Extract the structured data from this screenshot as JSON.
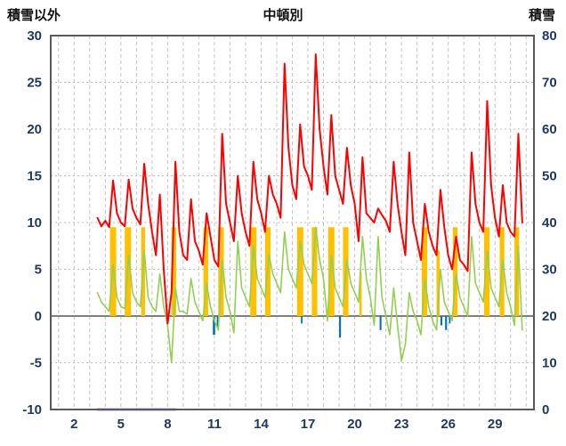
{
  "header": {
    "left_axis_caption": "積雪以外",
    "title": "中頓別",
    "right_axis_caption": "積雪"
  },
  "chart_data": {
    "type": "line",
    "title": "中頓別",
    "grid": true,
    "legend_position": "none",
    "left_axis": {
      "label": "積雪以外",
      "min": -10,
      "max": 30,
      "ticks": [
        30,
        25,
        20,
        15,
        10,
        5,
        0,
        -5,
        -10
      ]
    },
    "right_axis": {
      "label": "積雪",
      "min": 0,
      "max": 80,
      "ticks": [
        80,
        70,
        60,
        50,
        40,
        30,
        20,
        10,
        0
      ]
    },
    "x_axis": {
      "min": 0.5,
      "max": 31.5,
      "ticks": [
        2,
        5,
        8,
        11,
        14,
        17,
        20,
        23,
        26,
        29
      ],
      "gridline_step": 1
    },
    "series": [
      {
        "name": "orange-bars",
        "type": "bar",
        "color": "#FFC000",
        "axis": "left",
        "segments": [
          [
            4.3,
            4.7,
            9.5
          ],
          [
            5.25,
            5.65,
            9.5
          ],
          [
            6.3,
            6.55,
            9.5
          ],
          [
            8.25,
            8.55,
            9.5
          ],
          [
            10.3,
            10.6,
            9.5
          ],
          [
            11.25,
            11.6,
            9.5
          ],
          [
            13.3,
            13.7,
            9.5
          ],
          [
            14.25,
            14.6,
            9.5
          ],
          [
            16.3,
            16.7,
            9.5
          ],
          [
            17.25,
            17.6,
            9.5
          ],
          [
            18.3,
            18.7,
            9.5
          ],
          [
            19.25,
            19.6,
            9.5
          ],
          [
            20.3,
            20.45,
            4.7
          ],
          [
            24.3,
            24.65,
            9.5
          ],
          [
            25.25,
            25.45,
            7
          ],
          [
            26.3,
            26.6,
            9.5
          ],
          [
            28.3,
            28.65,
            9.5
          ],
          [
            29.3,
            29.6,
            9.5
          ],
          [
            30.25,
            30.55,
            9.5
          ]
        ]
      },
      {
        "name": "blue-bars",
        "type": "bar",
        "color": "#0070C0",
        "axis": "left",
        "segments": [
          [
            10.9,
            11.05,
            -2
          ],
          [
            11.15,
            11.25,
            -1.2
          ],
          [
            16.55,
            16.65,
            -0.8
          ],
          [
            19,
            19.12,
            -2.3
          ],
          [
            21.6,
            21.72,
            -1.5
          ],
          [
            25.5,
            25.62,
            -1
          ],
          [
            25.8,
            25.92,
            -1.5
          ],
          [
            26.05,
            26.15,
            -0.8
          ]
        ]
      },
      {
        "name": "purple-line",
        "type": "line-points",
        "color": "#7030A0",
        "width": 2.5,
        "axis": "right",
        "points": [
          [
            3.5,
            0
          ],
          [
            8.5,
            0
          ]
        ]
      },
      {
        "name": "green-line",
        "type": "line-sampled",
        "color": "#92D050",
        "width": 1.6,
        "axis": "left",
        "x_start": 3.5,
        "x_step": 0.25,
        "values": [
          2.5,
          1.5,
          1,
          0.5,
          5.5,
          2,
          1,
          0.8,
          6.5,
          2.5,
          1.5,
          1,
          7,
          2,
          1,
          0.5,
          4.5,
          1,
          -1,
          -5,
          3,
          0.5,
          0.5,
          0.2,
          4,
          1.5,
          0.5,
          -0.5,
          3.5,
          1,
          -0.5,
          -1.5,
          6,
          2,
          0.5,
          -1.8,
          8,
          3,
          2,
          1,
          7.5,
          4,
          3,
          2,
          6.5,
          4.5,
          3.5,
          2.5,
          9,
          5,
          4,
          3,
          8,
          5.5,
          4.5,
          3.5,
          9.5,
          6,
          4,
          -0.5,
          6.5,
          3,
          2,
          1,
          6,
          3.5,
          2.5,
          1.5,
          8.5,
          4,
          2,
          -1,
          8.5,
          2,
          0,
          -2,
          3,
          -1,
          -4.8,
          -3,
          2.5,
          0.5,
          -0.5,
          -2,
          4,
          1,
          -0.5,
          -1.5,
          5,
          1.5,
          0.5,
          -0.5,
          4.5,
          2,
          1,
          0,
          8.5,
          3.5,
          2.5,
          1.5,
          7,
          3,
          2,
          1,
          6,
          2.5,
          1,
          -1,
          7.5,
          -1.5
        ]
      },
      {
        "name": "red-line",
        "type": "line-sampled",
        "color": "#FF0000",
        "width": 2,
        "axis": "left",
        "x_start": 3.5,
        "x_step": 0.25,
        "values": [
          10.5,
          9.6,
          10.2,
          9.5,
          14.5,
          11,
          10,
          9.6,
          14.6,
          11.5,
          10.5,
          9.8,
          16.3,
          12,
          9,
          6.5,
          13,
          5,
          -0.8,
          2.5,
          16.5,
          9,
          6.5,
          6,
          12.5,
          8,
          7,
          5.5,
          11,
          8.5,
          6,
          5.3,
          19.5,
          12,
          10,
          8,
          15,
          11,
          9,
          7.5,
          16.5,
          12.5,
          11,
          9,
          15,
          13,
          12,
          10.5,
          27,
          18,
          14,
          12.5,
          20.5,
          16,
          15,
          13.5,
          28,
          20,
          16,
          13,
          21.5,
          15,
          13.5,
          12,
          18,
          14,
          12,
          8,
          17,
          11,
          10.5,
          10,
          11.5,
          10.8,
          10.2,
          9,
          16.5,
          12,
          9,
          6.5,
          17.5,
          10,
          8,
          6,
          12,
          9,
          7.5,
          6.5,
          13.5,
          9.5,
          6.5,
          5,
          8.5,
          6,
          5.5,
          4.8,
          17.5,
          12,
          10,
          9,
          23,
          14,
          10.5,
          8.5,
          14,
          10,
          9,
          8.5,
          19.5,
          10
        ]
      }
    ],
    "styles": {
      "frame_color": "#595959",
      "zero_line_color": "#7f7f7f",
      "v_grid_color": "#c6c6c6",
      "h_grid_color": "#bfbfbf",
      "tick_label_color": "#1F3864",
      "background": "#ffffff"
    }
  }
}
